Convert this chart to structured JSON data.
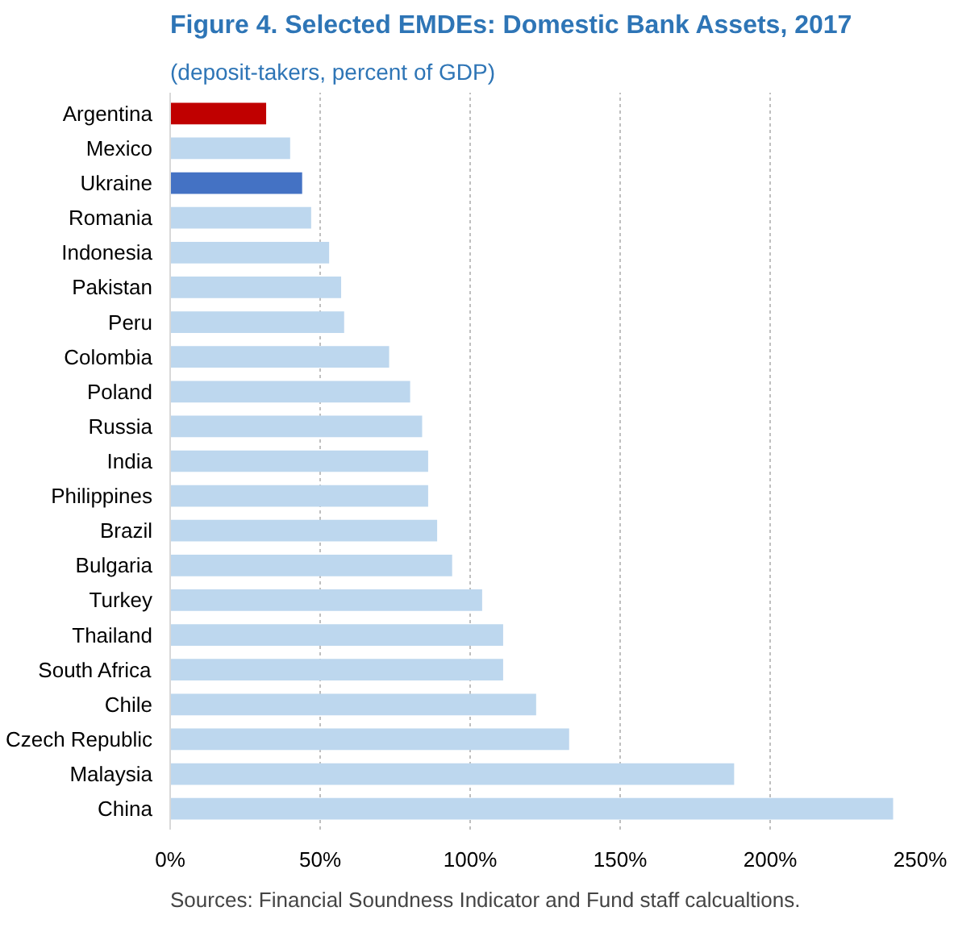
{
  "chart_data": {
    "type": "bar",
    "orientation": "horizontal",
    "title": "Figure 4. Selected EMDEs: Domestic Bank Assets, 2017",
    "subtitle": "(deposit-takers, percent of GDP)",
    "categories": [
      "Argentina",
      "Mexico",
      "Ukraine",
      "Romania",
      "Indonesia",
      "Pakistan",
      "Peru",
      "Colombia",
      "Poland",
      "Russia",
      "India",
      "Philippines",
      "Brazil",
      "Bulgaria",
      "Turkey",
      "Thailand",
      "South Africa",
      "Chile",
      "Czech Republic",
      "Malaysia",
      "China"
    ],
    "values": [
      32,
      40,
      44,
      47,
      53,
      57,
      58,
      73,
      80,
      84,
      86,
      86,
      89,
      94,
      104,
      111,
      111,
      122,
      133,
      188,
      241
    ],
    "colors": [
      "#c00000",
      "#bdd7ee",
      "#4472c4",
      "#bdd7ee",
      "#bdd7ee",
      "#bdd7ee",
      "#bdd7ee",
      "#bdd7ee",
      "#bdd7ee",
      "#bdd7ee",
      "#bdd7ee",
      "#bdd7ee",
      "#bdd7ee",
      "#bdd7ee",
      "#bdd7ee",
      "#bdd7ee",
      "#bdd7ee",
      "#bdd7ee",
      "#bdd7ee",
      "#bdd7ee",
      "#bdd7ee"
    ],
    "xlim": [
      0,
      250
    ],
    "xticks": [
      {
        "value": 0,
        "label": "0%"
      },
      {
        "value": 50,
        "label": "50%"
      },
      {
        "value": 100,
        "label": "100%"
      },
      {
        "value": 150,
        "label": "150%"
      },
      {
        "value": 200,
        "label": "200%"
      },
      {
        "value": 250,
        "label": "250%"
      }
    ],
    "grid": "x",
    "annotations": [
      "Sources: Financial Soundness Indicator and Fund staff calcualtions."
    ]
  }
}
